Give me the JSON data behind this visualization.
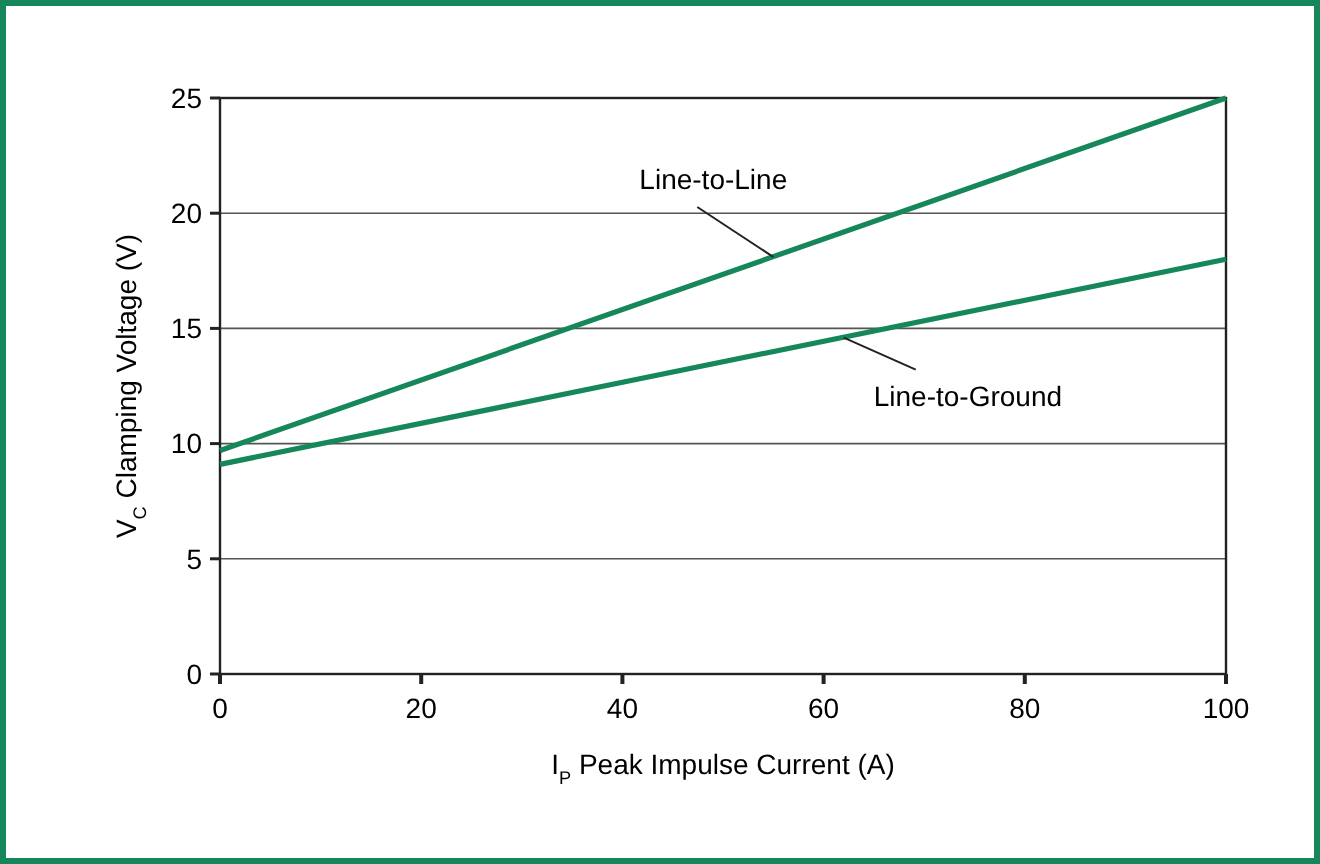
{
  "chart_data": {
    "type": "line",
    "xlabel": "I$_{P}$ Peak Impulse Current (A)",
    "ylabel": "V$_{C}$ Clamping Voltage (V)",
    "x": [
      0,
      100
    ],
    "series": [
      {
        "color": "#16875a",
        "values": [
          9.7,
          25
        ]
      },
      {
        "color": "#16875a",
        "values": [
          9.1,
          18
        ]
      }
    ],
    "xlim": [
      0,
      100
    ],
    "xticks": [
      0,
      20,
      40,
      60,
      80,
      100
    ],
    "ylim": [
      0,
      25
    ],
    "yticks": [
      0,
      5,
      10,
      15,
      20,
      25
    ],
    "grid": "y",
    "marker": "none",
    "line_style": "solid",
    "annotations": [
      {
        "text": "Line-to-Line",
        "x": 55,
        "y": 18.1
      },
      {
        "text": "Line-to-Ground",
        "x": 62,
        "y": 14.6
      }
    ]
  }
}
